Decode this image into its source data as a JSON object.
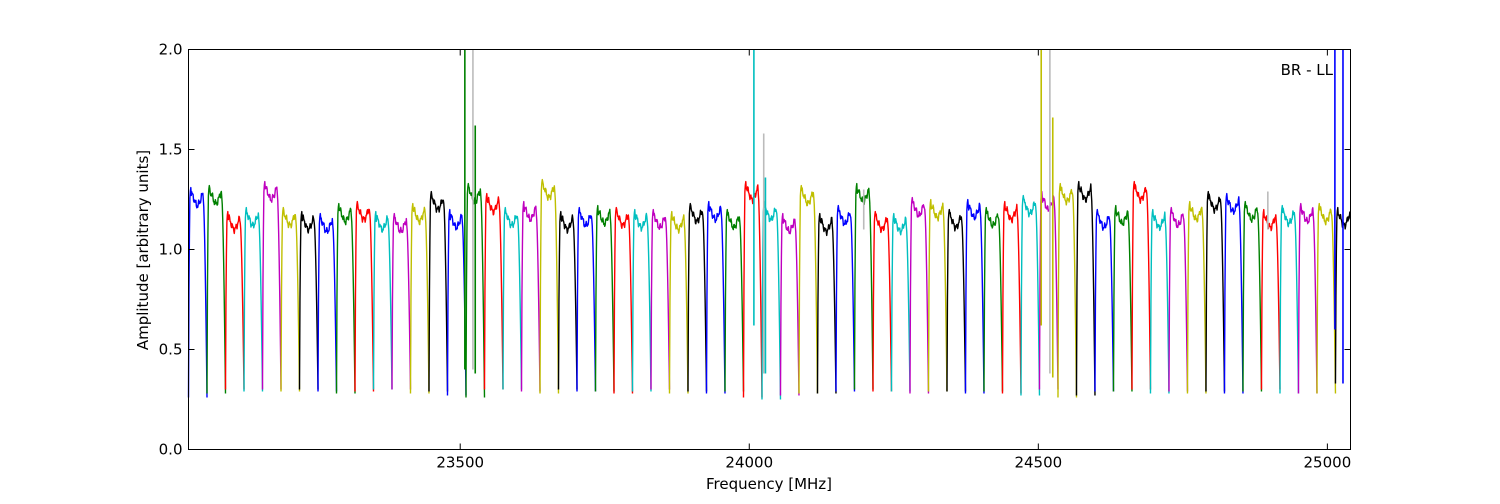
{
  "chart_data": {
    "type": "line",
    "title": "",
    "annotation": "BR - LL",
    "xlabel": "Frequency [MHz]",
    "ylabel": "Amplitude [arbitrary units]",
    "xlim": [
      23030,
      25040
    ],
    "ylim": [
      0.0,
      2.0
    ],
    "x_ticks": [
      23500,
      24000,
      24500,
      25000
    ],
    "x_tick_labels": [
      "23500",
      "24000",
      "24500",
      "25000"
    ],
    "y_ticks": [
      0.0,
      0.5,
      1.0,
      1.5,
      2.0
    ],
    "y_tick_labels": [
      "0.0",
      "0.5",
      "1.0",
      "1.5",
      "2.0"
    ],
    "grid": false,
    "legend": "none",
    "color_cycle": [
      "#0000ff",
      "#008000",
      "#ff0000",
      "#00bfbf",
      "#bf00bf",
      "#bfbf00",
      "#000000"
    ],
    "band_width_mhz": 32,
    "band_starts_mhz": [
      23030,
      23062,
      23094,
      23126,
      23158,
      23190,
      23222,
      23254,
      23286,
      23318,
      23350,
      23382,
      23414,
      23446,
      23478,
      23510,
      23542,
      23574,
      23606,
      23638,
      23670,
      23702,
      23734,
      23766,
      23798,
      23830,
      23862,
      23894,
      23926,
      23958,
      23990,
      24022,
      24054,
      24086,
      24118,
      24150,
      24182,
      24214,
      24246,
      24278,
      24310,
      24342,
      24374,
      24406,
      24438,
      24470,
      24502,
      24534,
      24566,
      24598,
      24630,
      24662,
      24694,
      24726,
      24758,
      24790,
      24822,
      24854,
      24886,
      24918,
      24950,
      24982,
      25014
    ],
    "band_peaks": [
      1.31,
      1.32,
      1.19,
      1.21,
      1.34,
      1.21,
      1.19,
      1.18,
      1.23,
      1.24,
      1.19,
      1.18,
      1.23,
      1.29,
      1.2,
      1.33,
      1.28,
      1.21,
      1.24,
      1.35,
      1.19,
      1.21,
      1.22,
      1.21,
      1.2,
      1.2,
      1.19,
      1.23,
      1.24,
      1.2,
      1.34,
      1.24,
      1.18,
      1.32,
      1.18,
      1.22,
      1.33,
      1.19,
      1.18,
      1.26,
      1.25,
      1.2,
      1.25,
      1.21,
      1.24,
      1.27,
      1.29,
      1.33,
      1.34,
      1.2,
      1.22,
      1.34,
      1.2,
      1.21,
      1.24,
      1.29,
      1.28,
      1.24,
      1.2,
      1.22,
      1.23,
      1.23,
      1.21
    ],
    "band_dips": [
      0.26,
      0.28,
      0.3,
      0.29,
      0.3,
      0.29,
      0.3,
      0.29,
      0.28,
      0.29,
      0.3,
      0.3,
      0.28,
      0.29,
      0.27,
      0.26,
      0.3,
      0.3,
      0.29,
      0.28,
      0.3,
      0.29,
      0.29,
      0.28,
      0.29,
      0.3,
      0.28,
      0.29,
      0.28,
      0.29,
      0.26,
      0.25,
      0.27,
      0.28,
      0.28,
      0.29,
      0.3,
      0.29,
      0.29,
      0.28,
      0.29,
      0.29,
      0.28,
      0.29,
      0.28,
      0.27,
      0.3,
      0.26,
      0.27,
      0.29,
      0.29,
      0.3,
      0.28,
      0.29,
      0.28,
      0.29,
      0.28,
      0.29,
      0.3,
      0.28,
      0.28,
      0.28,
      0.33
    ],
    "spikes": [
      {
        "x": 23508,
        "y_from": 0.4,
        "y_to": 2.0,
        "color": "#008000"
      },
      {
        "x": 23522,
        "y_from": 0.4,
        "y_to": 2.0,
        "color": "#bbbbbb"
      },
      {
        "x": 23526,
        "y_from": 0.38,
        "y_to": 1.62,
        "color": "#008000"
      },
      {
        "x": 24008,
        "y_from": 0.62,
        "y_to": 2.0,
        "color": "#00bfbf"
      },
      {
        "x": 24025,
        "y_from": 0.38,
        "y_to": 1.58,
        "color": "#bbbbbb"
      },
      {
        "x": 24028,
        "y_from": 0.38,
        "y_to": 1.36,
        "color": "#00bfbf"
      },
      {
        "x": 24198,
        "y_from": 1.1,
        "y_to": 1.3,
        "color": "#bbbbbb"
      },
      {
        "x": 24505,
        "y_from": 0.62,
        "y_to": 2.0,
        "color": "#bfbf00"
      },
      {
        "x": 24520,
        "y_from": 0.38,
        "y_to": 2.0,
        "color": "#bbbbbb"
      },
      {
        "x": 24525,
        "y_from": 0.36,
        "y_to": 1.66,
        "color": "#bfbf00"
      },
      {
        "x": 24897,
        "y_from": 1.1,
        "y_to": 1.29,
        "color": "#bbbbbb"
      },
      {
        "x": 25013,
        "y_from": 0.6,
        "y_to": 2.0,
        "color": "#0000ff"
      },
      {
        "x": 25027,
        "y_from": 0.33,
        "y_to": 2.0,
        "color": "#0000ff"
      }
    ]
  }
}
